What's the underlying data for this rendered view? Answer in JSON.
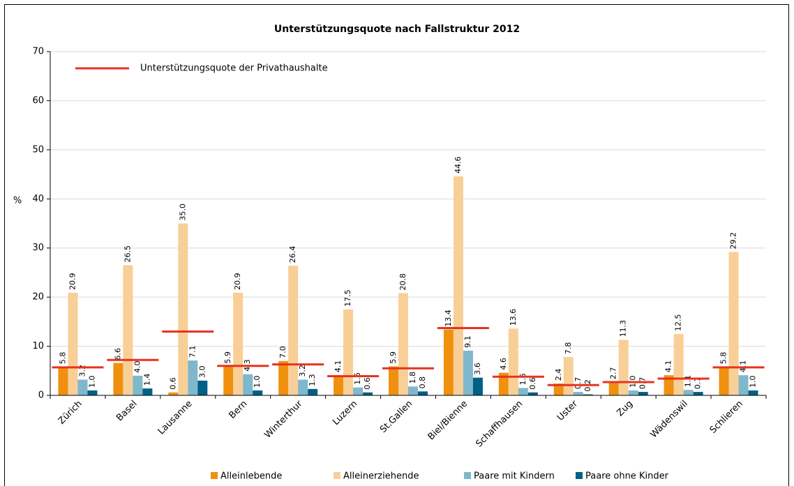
{
  "chart_data": {
    "type": "bar",
    "title": "Unterstützungsquote nach Fallstruktur 2012",
    "y_label": "%",
    "categories": [
      "Zürich",
      "Basel",
      "Lausanne",
      "Bern",
      "Winterthur",
      "Luzern",
      "St.Gallen",
      "Biel/Bienne",
      "Schaffhausen",
      "Uster",
      "Zug",
      "Wädenswil",
      "Schlieren"
    ],
    "series": [
      {
        "name": "Alleinlebende",
        "color": "#f0900f",
        "values": [
          5.8,
          6.6,
          0.6,
          5.9,
          7.0,
          4.1,
          5.9,
          13.4,
          4.6,
          2.4,
          2.7,
          4.1,
          5.8
        ],
        "value_labels": [
          "5.8",
          "6.6",
          "0.6",
          "5.9",
          "7.0",
          "4.1",
          "5.9",
          "13.4",
          "4.6",
          "2.4",
          "2.7",
          "4.1",
          "5.8"
        ]
      },
      {
        "name": "Alleinerziehende",
        "color": "#f8cf97",
        "values": [
          20.9,
          26.5,
          35.0,
          20.9,
          26.4,
          17.5,
          20.8,
          44.6,
          13.6,
          7.8,
          11.3,
          12.5,
          29.2
        ],
        "value_labels": [
          "20.9",
          "26.5",
          "35.0",
          "20.9",
          "26.4",
          "17.5",
          "20.8",
          "44.6",
          "13.6",
          "7.8",
          "11.3",
          "12.5",
          "29.2"
        ]
      },
      {
        "name": "Paare mit Kindern",
        "color": "#7fb8cc",
        "values": [
          3.2,
          4.0,
          7.1,
          4.3,
          3.2,
          1.6,
          1.8,
          9.1,
          1.5,
          0.7,
          1.0,
          1.1,
          4.1
        ],
        "value_labels": [
          "3.2",
          "4.0",
          "7.1",
          "4.3",
          "3.2",
          "1.6",
          "1.8",
          "9.1",
          "1.5",
          "0.7",
          "1.0",
          "1.1",
          "4.1"
        ]
      },
      {
        "name": "Paare ohne Kinder",
        "color": "#005f86",
        "values": [
          1.0,
          1.4,
          3.0,
          1.0,
          1.3,
          0.6,
          0.8,
          3.6,
          0.6,
          0.2,
          0.7,
          0.7,
          1.0
        ],
        "value_labels": [
          "1.0",
          "1.4",
          "3.0",
          "1.0",
          "1.3",
          "0.6",
          "0.8",
          "3.6",
          "0.6",
          "0.2",
          "0.7",
          "0.7",
          "1.0"
        ]
      }
    ],
    "reference": {
      "name": "Unterstützungsquote der Privathaushalte",
      "color": "#e8321e",
      "values": [
        5.7,
        7.2,
        13.0,
        6.0,
        6.3,
        3.9,
        5.5,
        13.7,
        3.8,
        2.1,
        2.7,
        3.4,
        5.7
      ]
    },
    "ylim": [
      0,
      70
    ],
    "yticks": [
      0,
      10,
      20,
      30,
      40,
      50,
      60,
      70
    ],
    "grid": true
  }
}
